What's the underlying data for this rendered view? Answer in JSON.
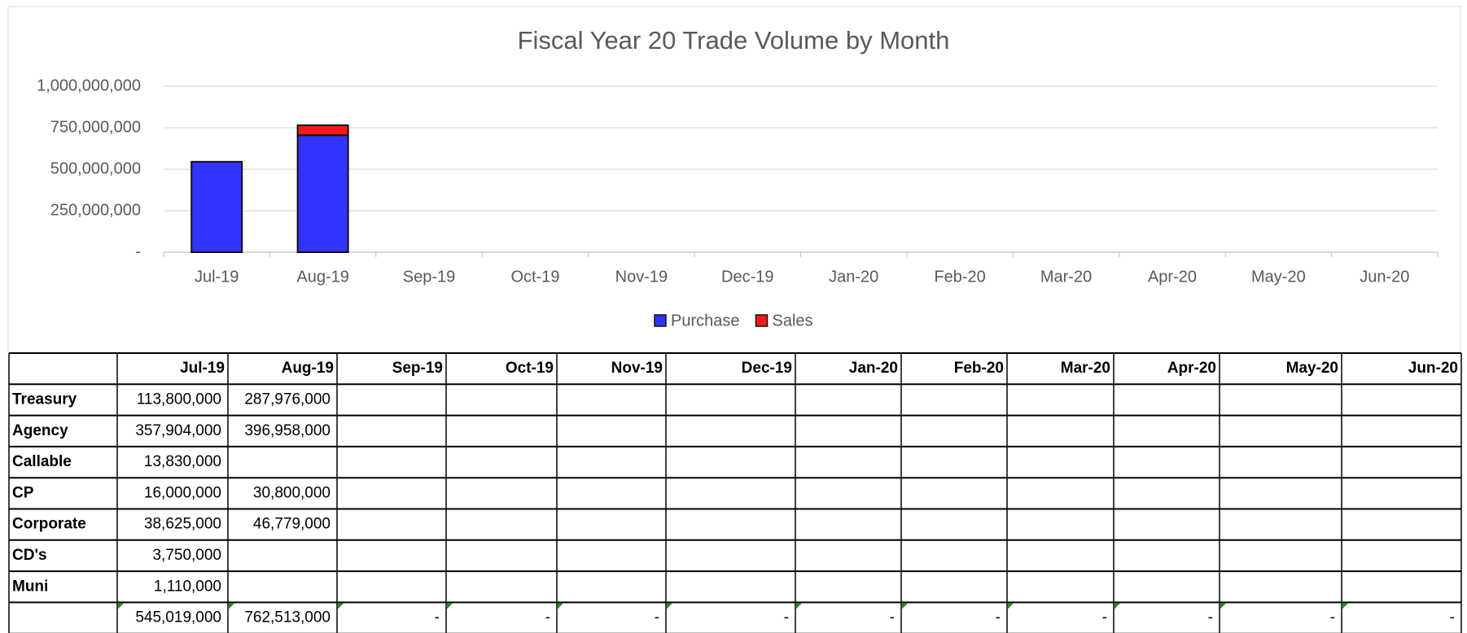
{
  "chart_data": {
    "type": "bar",
    "stacked": true,
    "title": "Fiscal Year 20 Trade Volume by Month",
    "categories": [
      "Jul-19",
      "Aug-19",
      "Sep-19",
      "Oct-19",
      "Nov-19",
      "Dec-19",
      "Jan-20",
      "Feb-20",
      "Mar-20",
      "Apr-20",
      "May-20",
      "Jun-20"
    ],
    "series": [
      {
        "name": "Purchase",
        "color": "#3333ff",
        "values": [
          545000000,
          705000000,
          null,
          null,
          null,
          null,
          null,
          null,
          null,
          null,
          null,
          null
        ]
      },
      {
        "name": "Sales",
        "color": "#ff1a1a",
        "values": [
          0,
          60000000,
          null,
          null,
          null,
          null,
          null,
          null,
          null,
          null,
          null,
          null
        ]
      }
    ],
    "ylim": [
      0,
      1000000000
    ],
    "yticks": [
      {
        "value": 0,
        "label": "-"
      },
      {
        "value": 250000000,
        "label": "250,000,000"
      },
      {
        "value": 500000000,
        "label": "500,000,000"
      },
      {
        "value": 750000000,
        "label": "750,000,000"
      },
      {
        "value": 1000000000,
        "label": "1,000,000,000"
      }
    ],
    "grid": true,
    "legend": "bottom"
  },
  "table": {
    "header": [
      "Jul-19",
      "Aug-19",
      "Sep-19",
      "Oct-19",
      "Nov-19",
      "Dec-19",
      "Jan-20",
      "Feb-20",
      "Mar-20",
      "Apr-20",
      "May-20",
      "Jun-20"
    ],
    "rows": [
      [
        "Treasury",
        "113,800,000",
        "287,976,000",
        null,
        null,
        null,
        null,
        null,
        null,
        null,
        null,
        null,
        null
      ],
      [
        "Agency",
        "357,904,000",
        "396,958,000",
        null,
        null,
        null,
        null,
        null,
        null,
        null,
        null,
        null,
        null
      ],
      [
        "Callable",
        "13,830,000",
        null,
        null,
        null,
        null,
        null,
        null,
        null,
        null,
        null,
        null,
        null
      ],
      [
        "CP",
        "16,000,000",
        "30,800,000",
        null,
        null,
        null,
        null,
        null,
        null,
        null,
        null,
        null,
        null
      ],
      [
        "Corporate",
        "38,625,000",
        "46,779,000",
        null,
        null,
        null,
        null,
        null,
        null,
        null,
        null,
        null,
        null
      ],
      [
        "CD's",
        "3,750,000",
        null,
        null,
        null,
        null,
        null,
        null,
        null,
        null,
        null,
        null,
        null
      ],
      [
        "Muni",
        "1,110,000",
        null,
        null,
        null,
        null,
        null,
        null,
        null,
        null,
        null,
        null,
        null
      ],
      [
        null,
        "545,019,000",
        "762,513,000",
        "-",
        "-",
        "-",
        "-",
        "-",
        "-",
        "-",
        "-",
        "-",
        "-"
      ]
    ]
  }
}
